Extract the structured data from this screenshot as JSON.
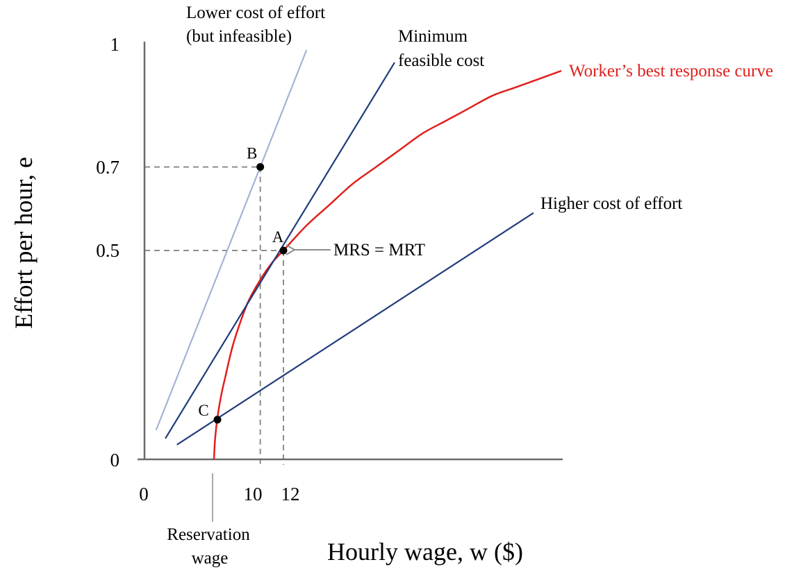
{
  "chart_data": {
    "type": "line",
    "xlabel": "Hourly wage,  w ($)",
    "ylabel": "Effort per hour,  e",
    "x_ticks": [
      "0",
      "10",
      "12"
    ],
    "y_ticks": [
      "0",
      "0.5",
      "0.7",
      "1"
    ],
    "xlim": [
      0,
      36
    ],
    "ylim": [
      0,
      1
    ],
    "x_annotation": [
      "Reservation",
      "wage"
    ],
    "grid": false,
    "colors": {
      "axis": "#6b6b6b",
      "guide": "#8c8c8c",
      "best_response": "#e0201c",
      "isocost": "#1f3c7a",
      "isocost_infeasible": "#a2b4d4",
      "point": "#000000"
    },
    "series": [
      {
        "name": "Worker’s best response curve",
        "kind": "curve",
        "points": [
          [
            6,
            0
          ],
          [
            6.1,
            0.05
          ],
          [
            6.3,
            0.1
          ],
          [
            6.6,
            0.15
          ],
          [
            7,
            0.2
          ],
          [
            7.6,
            0.27
          ],
          [
            8.3,
            0.33
          ],
          [
            9,
            0.38
          ],
          [
            10,
            0.43
          ],
          [
            11,
            0.47
          ],
          [
            12,
            0.5
          ],
          [
            14,
            0.56
          ],
          [
            16,
            0.61
          ],
          [
            18,
            0.66
          ],
          [
            20,
            0.7
          ],
          [
            22,
            0.74
          ],
          [
            24,
            0.78
          ],
          [
            26,
            0.81
          ],
          [
            28,
            0.84
          ],
          [
            30,
            0.87
          ],
          [
            32,
            0.89
          ],
          [
            34,
            0.91
          ],
          [
            36,
            0.93
          ]
        ]
      },
      {
        "name": "Minimum feasible cost",
        "kind": "line",
        "points": [
          [
            1.8,
            0.05
          ],
          [
            21.6,
            0.95
          ]
        ]
      },
      {
        "name": "Lower cost of effort (but infeasible)",
        "kind": "line",
        "points": [
          [
            1,
            0.07
          ],
          [
            14,
            0.98
          ]
        ]
      },
      {
        "name": "Higher cost of effort",
        "kind": "line",
        "points": [
          [
            2.8,
            0.035
          ],
          [
            33.6,
            0.59
          ]
        ]
      }
    ],
    "points": [
      {
        "label": "A",
        "x": 12,
        "y": 0.5
      },
      {
        "label": "B",
        "x": 10,
        "y": 0.7
      },
      {
        "label": "C",
        "x": 6.3,
        "y": 0.095
      }
    ],
    "annotations": {
      "lower_cost": [
        "Lower cost of effort",
        "(but infeasible)"
      ],
      "minimum_cost": [
        "Minimum",
        "feasible cost"
      ],
      "higher_cost": "Higher cost of effort",
      "best_response": "Worker’s best response curve",
      "mrs_mrt": "MRS = MRT"
    }
  }
}
